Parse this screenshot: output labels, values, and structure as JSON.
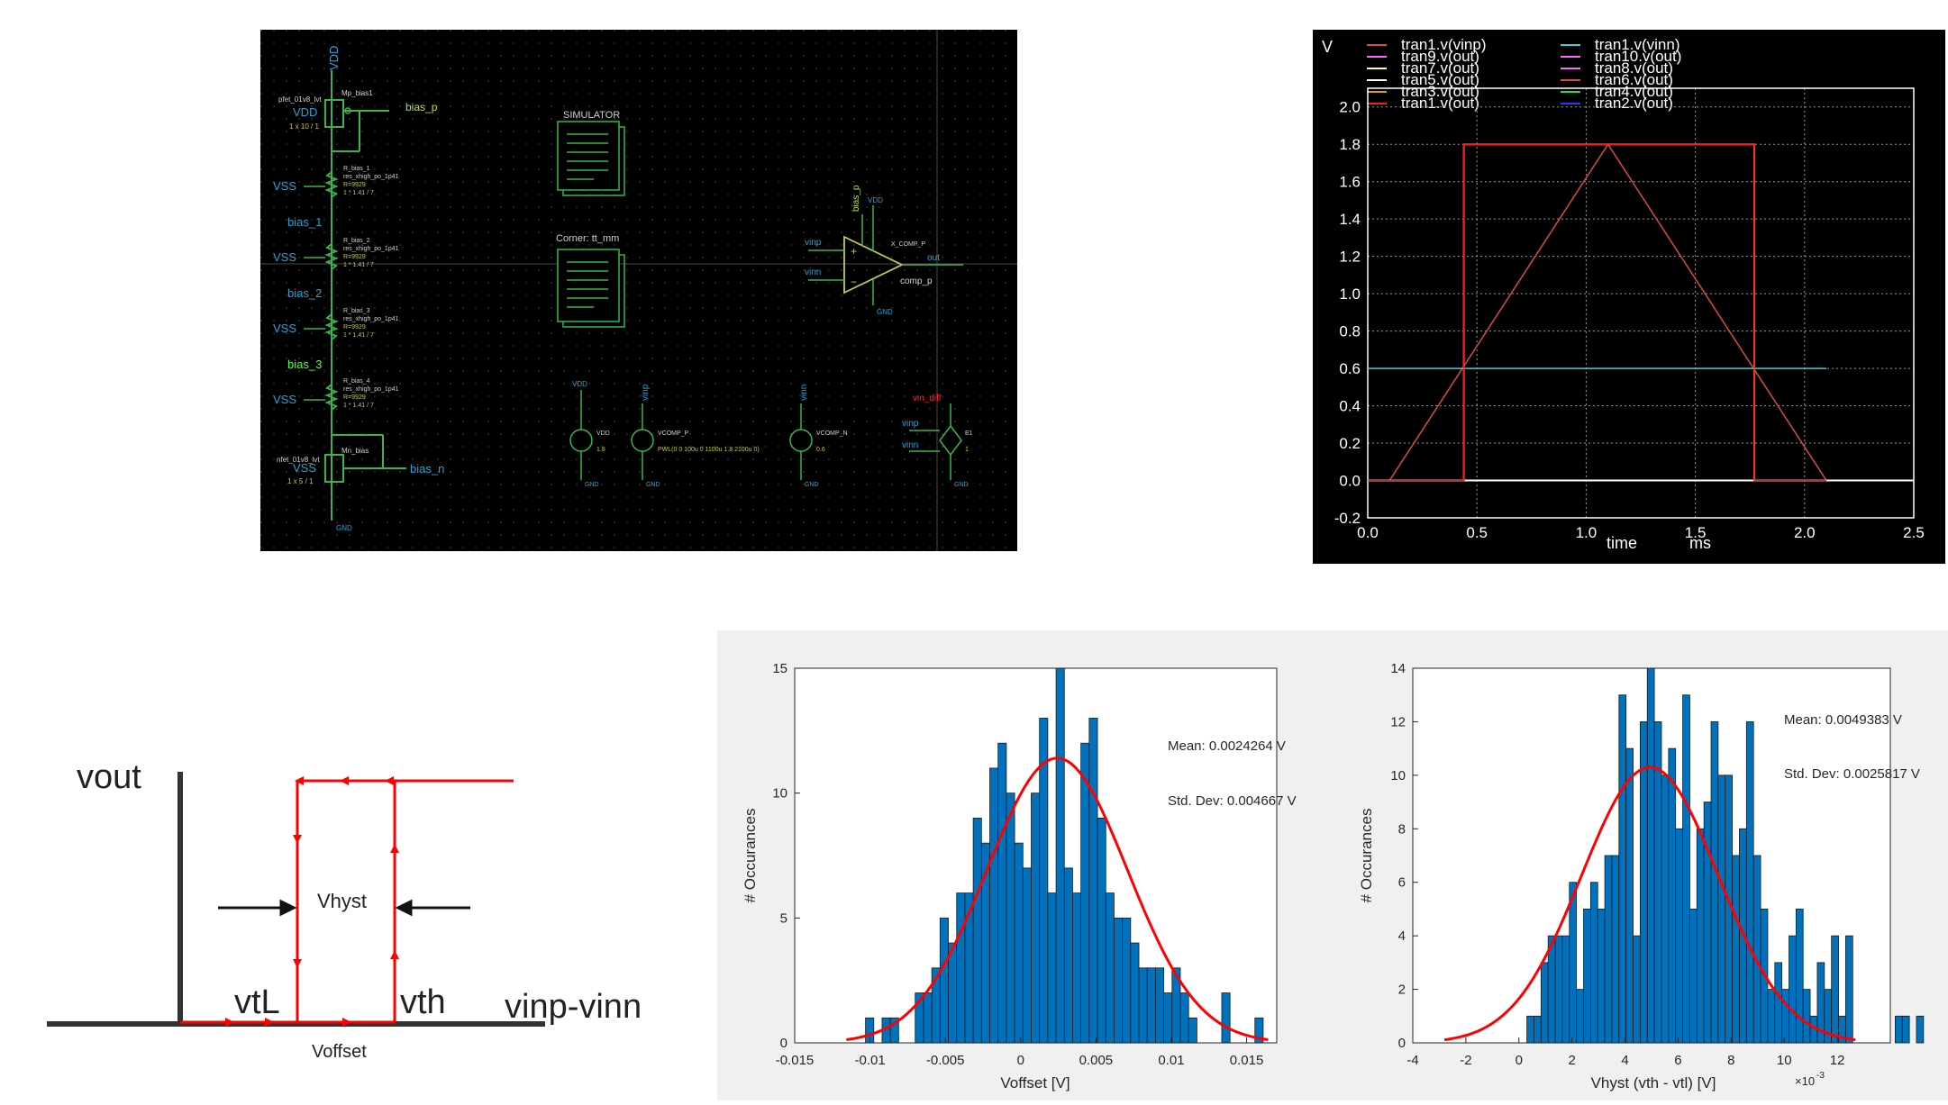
{
  "schematic": {
    "net_labels": [
      "VDD",
      "VDD",
      "VSS",
      "VSS",
      "VSS",
      "VSS",
      "VSS",
      "bias_1",
      "bias_2",
      "bias_3",
      "bias_p",
      "bias_n"
    ],
    "pfet": {
      "model": "pfet_01v8_lvt",
      "name": "Mp_bias1",
      "size": "1 x 10 / 1"
    },
    "nfet": {
      "model": "nfet_01v8_lvt",
      "name": "Mn_bias",
      "size": "1 x 5 / 1"
    },
    "resistors": [
      {
        "name": "R_bias_1",
        "model": "res_xhigh_po_1p41",
        "value": "R=9929",
        "mult": "1 * 1.41 / 7"
      },
      {
        "name": "R_bias_2",
        "model": "res_xhigh_po_1p41",
        "value": "R=9929",
        "mult": "1 * 1.41 / 7"
      },
      {
        "name": "R_bias_3",
        "model": "res_xhigh_po_1p41",
        "value": "R=9929",
        "mult": "1 * 1.41 / 7"
      },
      {
        "name": "R_bias_4",
        "model": "res_xhigh_po_1p41",
        "value": "R=9929",
        "mult": "1 * 1.41 / 7"
      }
    ],
    "simulator_label": "SIMULATOR",
    "corner_label": "Corner: tt_mm",
    "comparator": {
      "inst": "X_COMP_P",
      "cell": "comp_p",
      "in_p": "vinp",
      "in_n": "vinn",
      "out": "out",
      "bias": "bias_p",
      "vdd": "VDD",
      "gnd": "GND"
    },
    "sources": [
      {
        "net": "VDD",
        "name": "VDD",
        "value": "1.8"
      },
      {
        "net": "vinp",
        "name": "VCOMP_P",
        "value": "PWL(0 0 100u 0 1100u 1.8 2100u 0)"
      },
      {
        "net": "vinn",
        "name": "VCOMP_N",
        "value": "0.6"
      }
    ],
    "vcvs": {
      "net": "vin_diff",
      "in_p": "vinp",
      "in_n": "vinn",
      "name": "E1",
      "gain": "1"
    },
    "gnd_label": "GND"
  },
  "waveform": {
    "y_unit": "V",
    "legend": [
      "tran1.v(vinp)",
      "tran1.v(vinn)",
      "tran9.v(out)",
      "tran10.v(out)",
      "tran7.v(out)",
      "tran8.v(out)",
      "tran5.v(out)",
      "tran6.v(out)",
      "tran3.v(out)",
      "tran4.v(out)",
      "tran1.v(out)",
      "tran2.v(out)"
    ],
    "x_label": "time",
    "x_unit": "ms",
    "x_ticks": [
      "0.0",
      "0.5",
      "1.0",
      "1.5",
      "2.0",
      "2.5"
    ],
    "y_ticks": [
      "2.0",
      "1.8",
      "1.6",
      "1.4",
      "1.2",
      "1.0",
      "0.8",
      "0.6",
      "0.4",
      "0.2",
      "0.0",
      "-0.2"
    ]
  },
  "hysteresis": {
    "ylabel": "vout",
    "xlabel": "vinp-vinn",
    "vtl": "vtL",
    "vth": "vth",
    "vhyst": "Vhyst",
    "voffset": "Voffset"
  },
  "chart_data": [
    {
      "type": "bar",
      "xlabel": "Voffset [V]",
      "ylabel": "# Occurances",
      "x_ticks": [
        "-0.015",
        "-0.01",
        "-0.005",
        "0",
        "0.005",
        "0.01",
        "0.015"
      ],
      "y_ticks": [
        "0",
        "5",
        "10",
        "15"
      ],
      "xlim": [
        -0.015,
        0.017
      ],
      "ylim": [
        0,
        15
      ],
      "bin_start": -0.0103,
      "bin_width": 0.00055,
      "values": [
        1,
        0,
        1,
        1,
        0,
        0,
        2,
        2,
        3,
        5,
        4,
        6,
        6,
        9,
        8,
        11,
        12,
        10,
        8,
        7,
        10,
        13,
        6,
        15,
        7,
        6,
        12,
        13,
        9,
        6,
        5,
        5,
        4,
        3,
        3,
        3,
        2,
        3,
        2,
        1,
        0,
        0,
        0,
        2,
        0,
        0,
        0,
        1
      ],
      "fit": {
        "mean": 0.0024264,
        "std": 0.004667,
        "peak": 11.4
      },
      "annotations": [
        "Mean: 0.0024264 V",
        "Std. Dev: 0.004667 V"
      ],
      "bar_color": "#0072bd",
      "fit_color": "#ff0000"
    },
    {
      "type": "bar",
      "xlabel": "Vhyst (vth - vtl) [V]",
      "ylabel": "# Occurances",
      "x_ticks": [
        "-4",
        "-2",
        "0",
        "2",
        "4",
        "6",
        "8",
        "10",
        "12"
      ],
      "x_multiplier": "×10",
      "x_exponent": "-3",
      "y_ticks": [
        "0",
        "2",
        "4",
        "6",
        "8",
        "10",
        "12",
        "14"
      ],
      "xlim": [
        -4,
        14
      ],
      "ylim": [
        0,
        14
      ],
      "bin_start": 0.3,
      "bin_width": 0.267,
      "values": [
        1,
        1,
        3,
        4,
        4,
        4,
        6,
        2,
        5,
        6,
        5,
        7,
        7,
        13,
        11,
        4,
        12,
        14,
        12,
        10,
        11,
        8,
        13,
        5,
        8,
        9,
        12,
        10,
        10,
        7,
        8,
        12,
        7,
        5,
        2,
        3,
        2,
        4,
        5,
        2,
        1,
        3,
        2,
        4,
        1,
        4,
        0,
        0,
        0,
        0,
        0,
        0,
        1,
        1,
        0,
        1,
        0,
        0,
        0,
        0,
        1
      ],
      "fit": {
        "mean": 4.9383,
        "std": 2.5817,
        "peak": 10.3
      },
      "annotations": [
        "Mean: 0.0049383 V",
        "Std. Dev: 0.0025817 V"
      ],
      "bar_color": "#0072bd",
      "fit_color": "#ff0000"
    }
  ]
}
